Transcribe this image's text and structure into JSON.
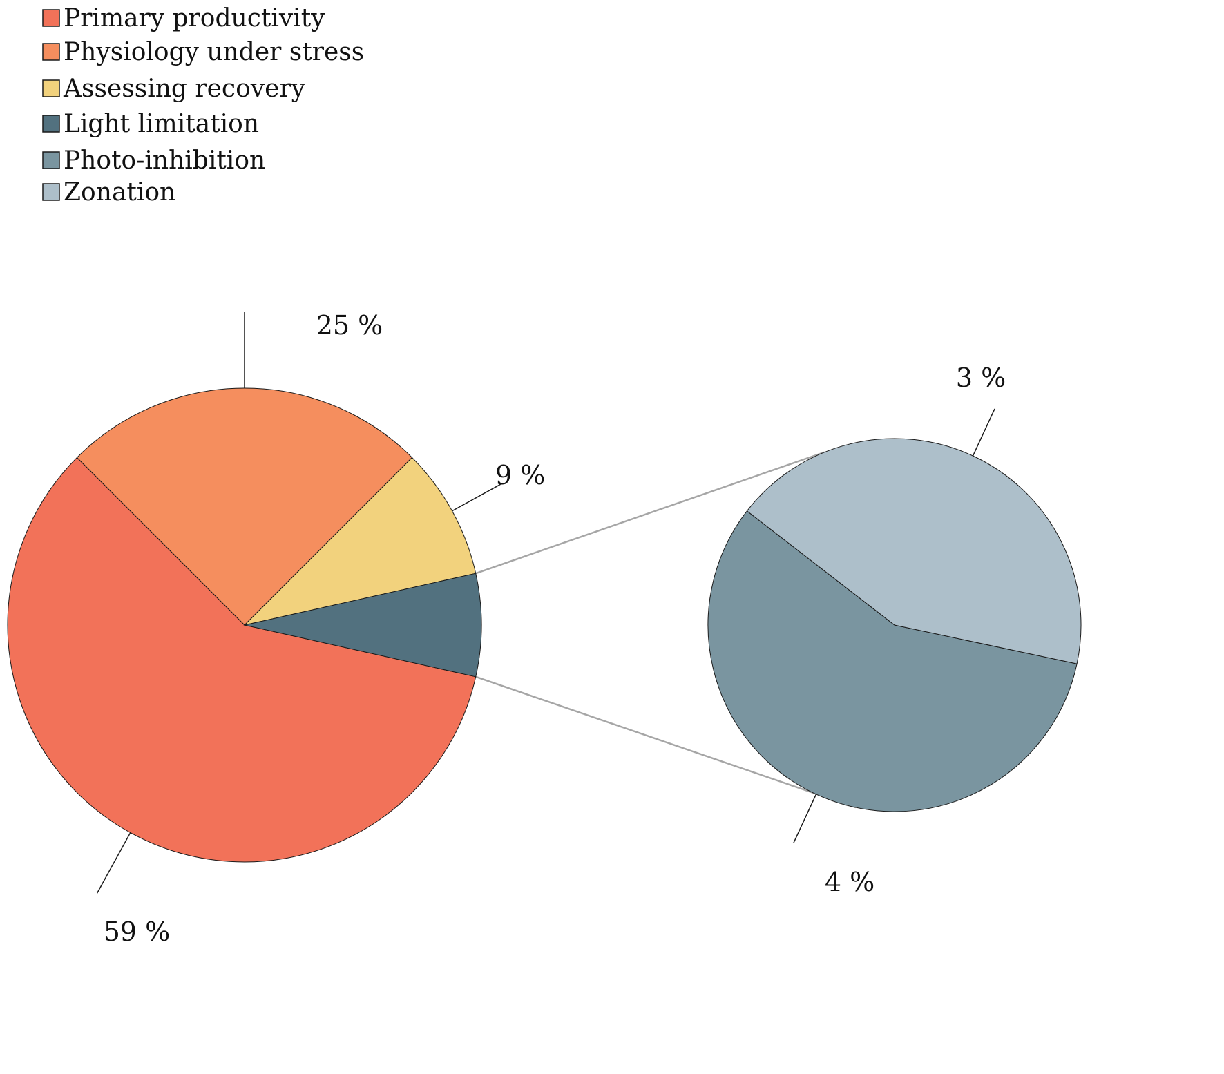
{
  "chart_data": {
    "type": "pie",
    "variant": "pie-of-pie",
    "title": "",
    "legend_position": "top-left",
    "main_pie": {
      "slices": [
        {
          "name": "Primary productivity",
          "value": 59,
          "label": "59 %",
          "color": "#f27259"
        },
        {
          "name": "Physiology under stress",
          "value": 25,
          "label": "25 %",
          "color": "#f58e5e"
        },
        {
          "name": "Assessing recovery",
          "value": 9,
          "label": "9 %",
          "color": "#f2d27d"
        },
        {
          "name": "Light limitation",
          "value": 7,
          "label": "",
          "color": "#52717f",
          "exploded": true
        }
      ]
    },
    "detail_pie": {
      "source": "Light limitation",
      "slices": [
        {
          "name": "Photo-inhibition",
          "value": 4,
          "label": "4 %",
          "color": "#7a95a0"
        },
        {
          "name": "Zonation",
          "value": 3,
          "label": "3 %",
          "color": "#adbfca"
        }
      ]
    },
    "legend": [
      {
        "name": "Primary productivity",
        "color": "#f27259"
      },
      {
        "name": "Physiology under stress",
        "color": "#f58e5e"
      },
      {
        "name": "Assessing recovery",
        "color": "#f2d27d"
      },
      {
        "name": "Light limitation",
        "color": "#52717f"
      },
      {
        "name": "Photo-inhibition",
        "color": "#7a95a0"
      },
      {
        "name": "Zonation",
        "color": "#adbfca"
      }
    ]
  }
}
